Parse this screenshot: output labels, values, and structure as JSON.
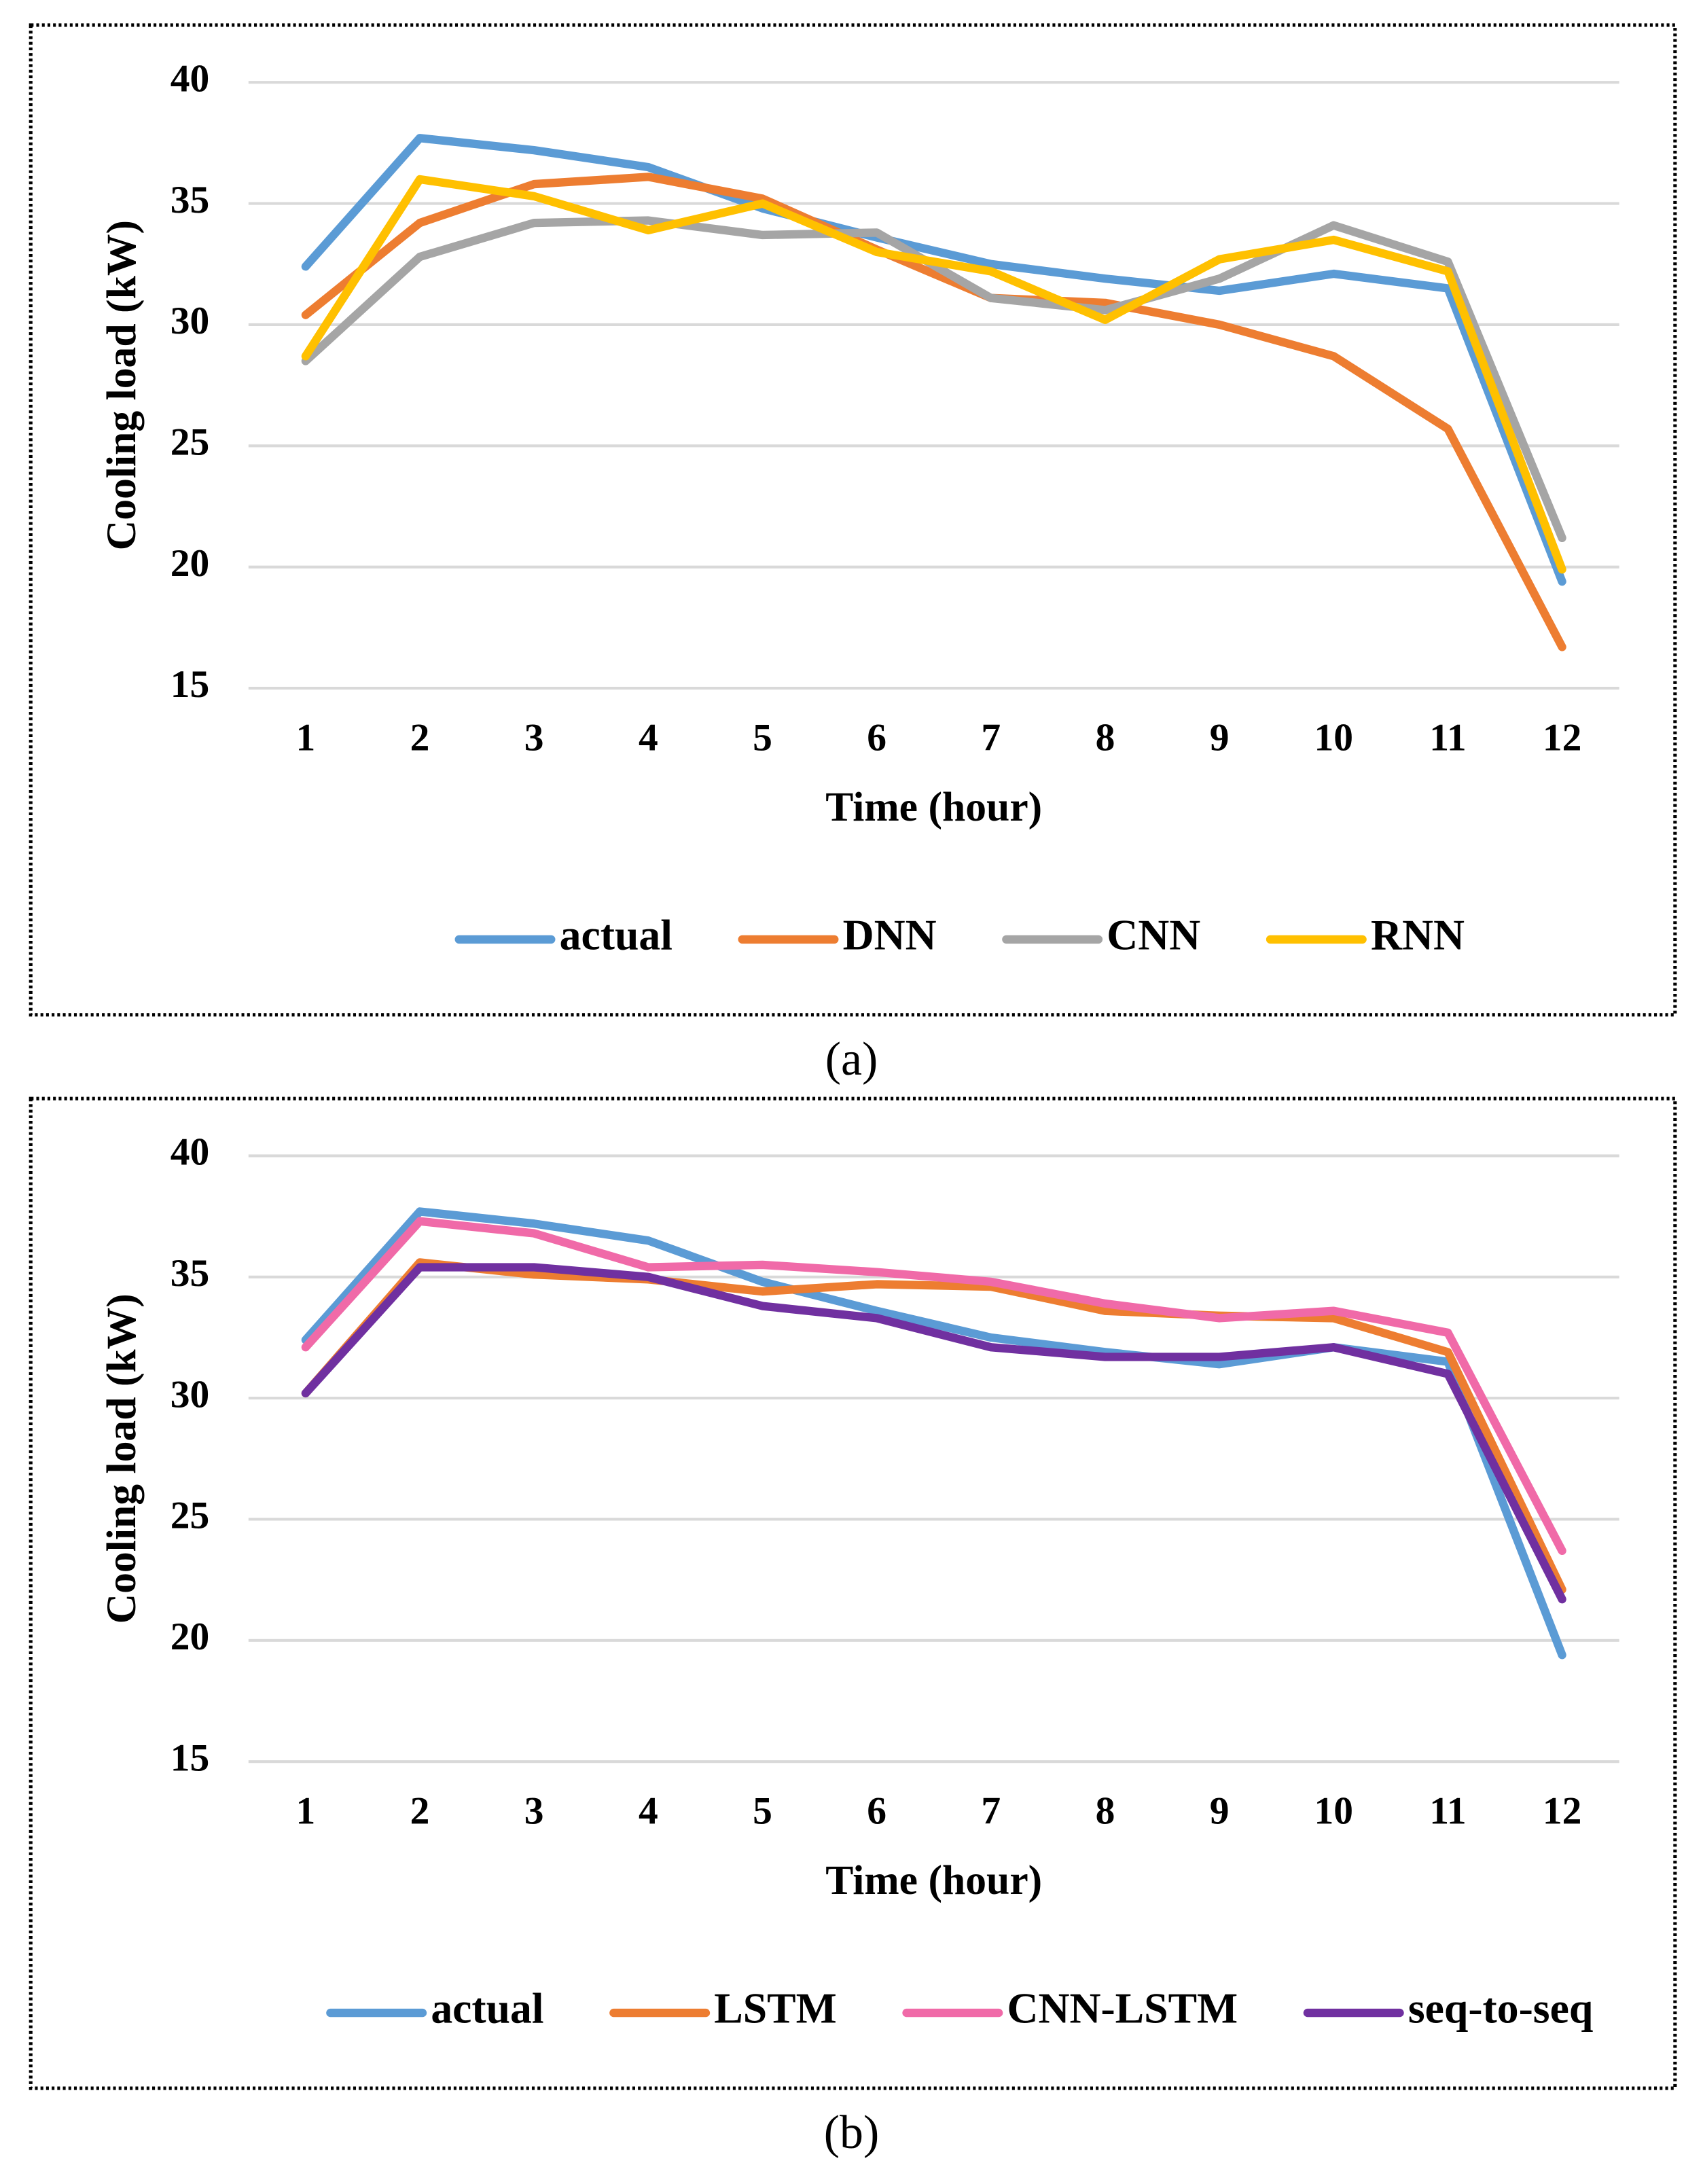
{
  "chart_data": [
    {
      "type": "line",
      "caption": "(a)",
      "x_label": "Time (hour)",
      "y_label": "Cooling load (kW)",
      "categories": [
        "1",
        "2",
        "3",
        "4",
        "5",
        "6",
        "7",
        "8",
        "9",
        "10",
        "11",
        "12"
      ],
      "ylim": [
        15,
        40
      ],
      "yticks": [
        15,
        20,
        25,
        30,
        35,
        40
      ],
      "grid": true,
      "legend": "bottom",
      "series": [
        {
          "name": "actual",
          "color": "#5b9bd5",
          "values": [
            32.4,
            37.7,
            37.2,
            36.5,
            34.8,
            33.6,
            32.5,
            31.9,
            31.4,
            32.1,
            31.5,
            19.4
          ]
        },
        {
          "name": "DNN",
          "color": "#ed7d31",
          "values": [
            30.4,
            34.2,
            35.8,
            36.1,
            35.2,
            33.1,
            31.1,
            30.9,
            30.0,
            28.7,
            25.7,
            16.7
          ]
        },
        {
          "name": "CNN",
          "color": "#a5a5a5",
          "values": [
            28.5,
            32.8,
            34.2,
            34.3,
            33.7,
            33.8,
            31.1,
            30.6,
            31.9,
            34.1,
            32.6,
            21.2
          ]
        },
        {
          "name": "RNN",
          "color": "#ffc000",
          "values": [
            28.7,
            36.0,
            35.3,
            33.9,
            35.0,
            33.0,
            32.2,
            30.2,
            32.7,
            33.5,
            32.2,
            19.9
          ]
        }
      ]
    },
    {
      "type": "line",
      "caption": "(b)",
      "x_label": "Time (hour)",
      "y_label": "Cooling load (kW)",
      "categories": [
        "1",
        "2",
        "3",
        "4",
        "5",
        "6",
        "7",
        "8",
        "9",
        "10",
        "11",
        "12"
      ],
      "ylim": [
        15,
        40
      ],
      "yticks": [
        15,
        20,
        25,
        30,
        35,
        40
      ],
      "grid": true,
      "legend": "bottom",
      "series": [
        {
          "name": "actual",
          "color": "#5b9bd5",
          "values": [
            32.4,
            37.7,
            37.2,
            36.5,
            34.8,
            33.6,
            32.5,
            31.9,
            31.4,
            32.1,
            31.5,
            19.4
          ]
        },
        {
          "name": "LSTM",
          "color": "#ed7d31",
          "values": [
            30.2,
            35.6,
            35.1,
            34.9,
            34.4,
            34.7,
            34.6,
            33.6,
            33.4,
            33.3,
            31.9,
            22.1
          ]
        },
        {
          "name": "CNN-LSTM",
          "color": "#f06aa8",
          "values": [
            32.1,
            37.3,
            36.8,
            35.4,
            35.5,
            35.2,
            34.8,
            33.9,
            33.3,
            33.6,
            32.7,
            23.7
          ]
        },
        {
          "name": "seq-to-seq",
          "color": "#7030a0",
          "values": [
            30.2,
            35.4,
            35.4,
            35.0,
            33.8,
            33.3,
            32.1,
            31.7,
            31.7,
            32.1,
            31.0,
            21.7
          ]
        }
      ]
    }
  ]
}
